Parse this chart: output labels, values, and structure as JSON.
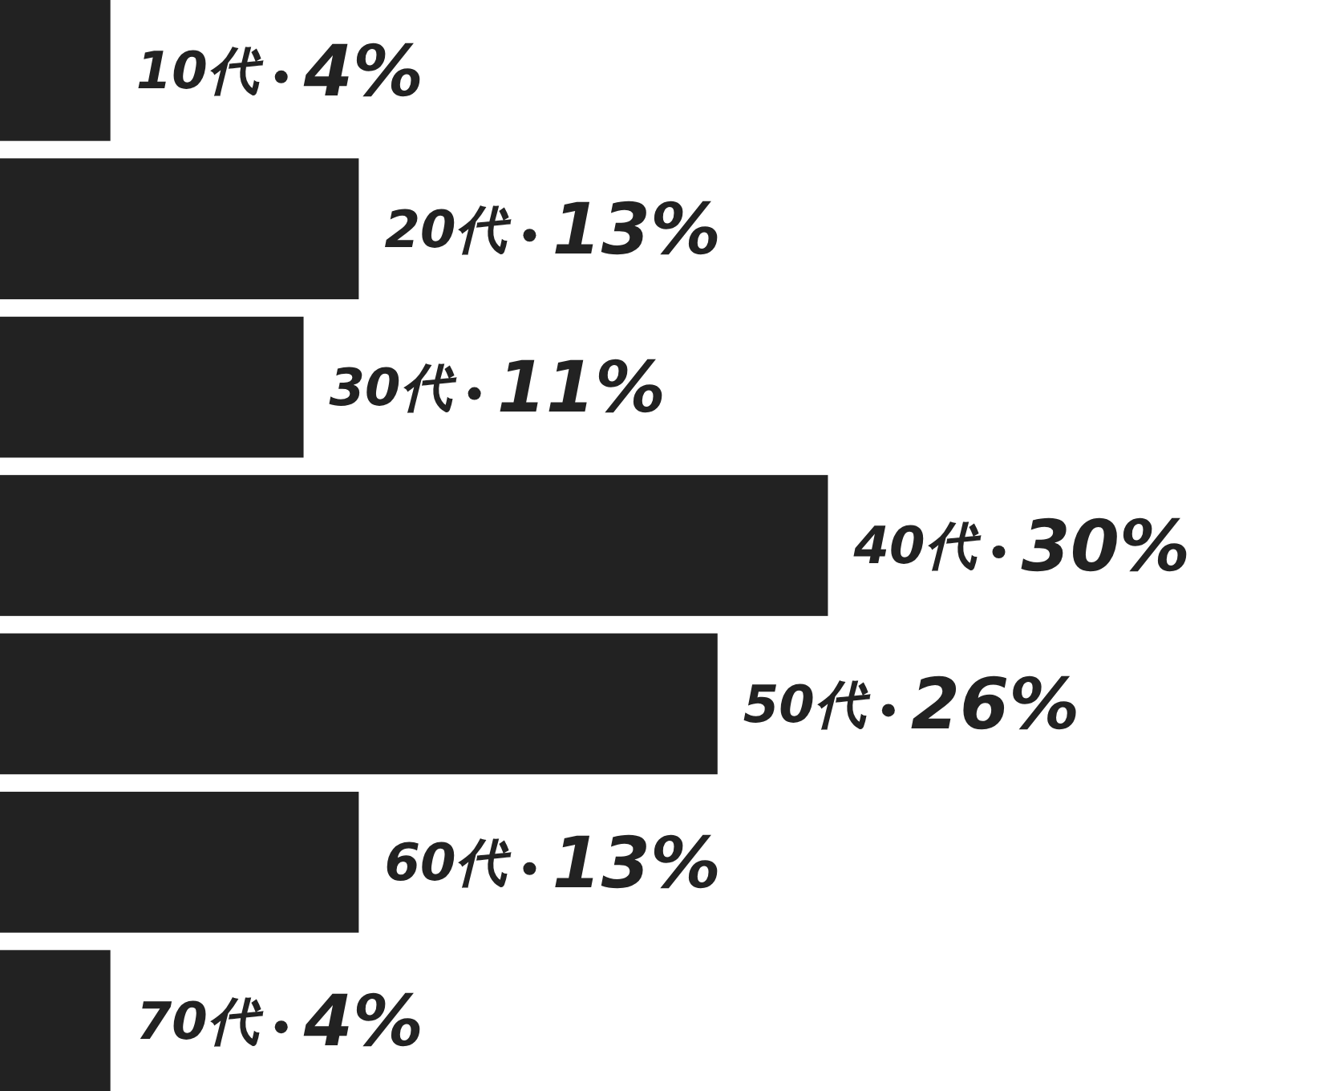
{
  "chart_data": {
    "type": "bar",
    "orientation": "horizontal",
    "categories": [
      "10代",
      "20代",
      "30代",
      "40代",
      "50代",
      "60代",
      "70代"
    ],
    "values": [
      4,
      13,
      11,
      30,
      26,
      13,
      4
    ],
    "value_labels": [
      "4%",
      "13%",
      "11%",
      "30%",
      "26%",
      "13%",
      "4%"
    ],
    "color": "#222222",
    "xlim": [
      0,
      48.7
    ]
  }
}
